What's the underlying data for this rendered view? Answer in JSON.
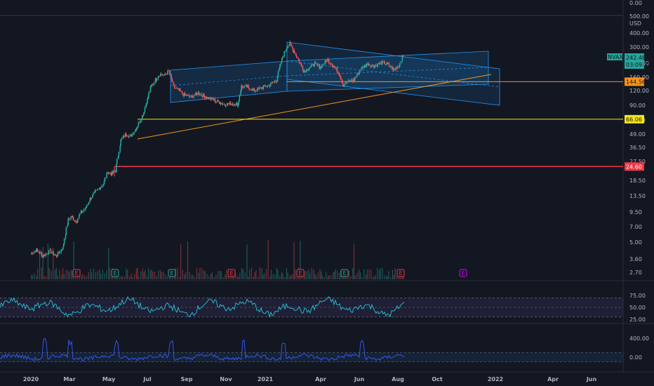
{
  "chart_data": {
    "type": "candlestick",
    "symbol": "NVAX",
    "currency": "USD",
    "main_scale": "log",
    "y_ticks": [
      "0.00",
      "500.00",
      "400.00",
      "300.00",
      "200.00",
      "160.00",
      "120.00",
      "90.00",
      "66.00",
      "49.00",
      "36.50",
      "27.50",
      "18.50",
      "13.50",
      "9.50",
      "7.00",
      "5.00",
      "3.60",
      "2.70"
    ],
    "x_ticks": [
      "2020",
      "Mar",
      "May",
      "Jul",
      "Sep",
      "Nov",
      "2021",
      "Apr",
      "Jun",
      "Aug",
      "Oct",
      "2022",
      "Apr",
      "Jun"
    ],
    "last_price": {
      "value": "242.46",
      "countdown": "03:09:27",
      "color": "#26a69a"
    },
    "horizontal_levels": [
      {
        "value": "144.56",
        "color": "#f7931a"
      },
      {
        "value": "66.06",
        "color": "#f5e51a"
      },
      {
        "value": "24.60",
        "color": "#f23645"
      }
    ],
    "earnings_markers": [
      {
        "label": "E",
        "color": "#f23645"
      },
      {
        "label": "E",
        "color": "#26a69a"
      },
      {
        "label": "E",
        "color": "#26a69a"
      },
      {
        "label": "E",
        "color": "#f23645"
      },
      {
        "label": "E",
        "color": "#f23645"
      },
      {
        "label": "E",
        "color": "#26a69a"
      },
      {
        "label": "E",
        "color": "#f23645"
      },
      {
        "label": "E",
        "color": "#d500f9"
      }
    ],
    "price_path": [
      [
        "2020-01-01",
        4.0
      ],
      [
        "2020-01-10",
        4.3
      ],
      [
        "2020-01-20",
        3.8
      ],
      [
        "2020-01-31",
        4.2
      ],
      [
        "2020-02-10",
        3.8
      ],
      [
        "2020-02-20",
        4.5
      ],
      [
        "2020-02-28",
        8.0
      ],
      [
        "2020-03-05",
        8.6
      ],
      [
        "2020-03-12",
        7.8
      ],
      [
        "2020-03-19",
        9.4
      ],
      [
        "2020-03-26",
        10.2
      ],
      [
        "2020-04-02",
        12.5
      ],
      [
        "2020-04-09",
        14.0
      ],
      [
        "2020-04-16",
        15.5
      ],
      [
        "2020-04-23",
        17.2
      ],
      [
        "2020-04-30",
        22.0
      ],
      [
        "2020-05-06",
        21.0
      ],
      [
        "2020-05-12",
        22.5
      ],
      [
        "2020-05-20",
        42.0
      ],
      [
        "2020-05-28",
        49.0
      ],
      [
        "2020-06-05",
        46.0
      ],
      [
        "2020-06-15",
        56.0
      ],
      [
        "2020-06-25",
        74.0
      ],
      [
        "2020-07-01",
        98.0
      ],
      [
        "2020-07-07",
        130.0
      ],
      [
        "2020-07-14",
        150.0
      ],
      [
        "2020-07-21",
        170.0
      ],
      [
        "2020-07-28",
        165.0
      ],
      [
        "2020-08-04",
        180.0
      ],
      [
        "2020-08-12",
        130.0
      ],
      [
        "2020-08-20",
        120.0
      ],
      [
        "2020-08-28",
        110.0
      ],
      [
        "2020-09-08",
        105.0
      ],
      [
        "2020-09-20",
        115.0
      ],
      [
        "2020-10-01",
        105.0
      ],
      [
        "2020-10-15",
        98.0
      ],
      [
        "2020-10-30",
        90.0
      ],
      [
        "2020-11-10",
        92.0
      ],
      [
        "2020-11-20",
        90.0
      ],
      [
        "2020-11-25",
        130.0
      ],
      [
        "2020-12-05",
        130.0
      ],
      [
        "2020-12-15",
        120.0
      ],
      [
        "2020-12-28",
        128.0
      ],
      [
        "2021-01-08",
        135.0
      ],
      [
        "2021-01-20",
        150.0
      ],
      [
        "2021-01-28",
        230.0
      ],
      [
        "2021-02-05",
        300.0
      ],
      [
        "2021-02-10",
        320.0
      ],
      [
        "2021-02-16",
        280.0
      ],
      [
        "2021-02-24",
        230.0
      ],
      [
        "2021-03-05",
        180.0
      ],
      [
        "2021-03-12",
        190.0
      ],
      [
        "2021-03-22",
        210.0
      ],
      [
        "2021-04-01",
        195.0
      ],
      [
        "2021-04-12",
        230.0
      ],
      [
        "2021-04-22",
        200.0
      ],
      [
        "2021-05-01",
        170.0
      ],
      [
        "2021-05-07",
        135.0
      ],
      [
        "2021-05-14",
        145.0
      ],
      [
        "2021-05-24",
        150.0
      ],
      [
        "2021-06-04",
        190.0
      ],
      [
        "2021-06-15",
        210.0
      ],
      [
        "2021-06-25",
        200.0
      ],
      [
        "2021-07-06",
        215.0
      ],
      [
        "2021-07-16",
        210.0
      ],
      [
        "2021-07-26",
        185.0
      ],
      [
        "2021-08-03",
        205.0
      ],
      [
        "2021-08-09",
        242.46
      ]
    ],
    "indicator_1": {
      "y_ticks": [
        "75.00",
        "50.00",
        "25.00"
      ],
      "band": [
        30,
        70
      ],
      "mid": 50
    },
    "indicator_2": {
      "y_ticks": [
        "400.00",
        "0.00"
      ],
      "band": [
        -100,
        100
      ]
    }
  }
}
